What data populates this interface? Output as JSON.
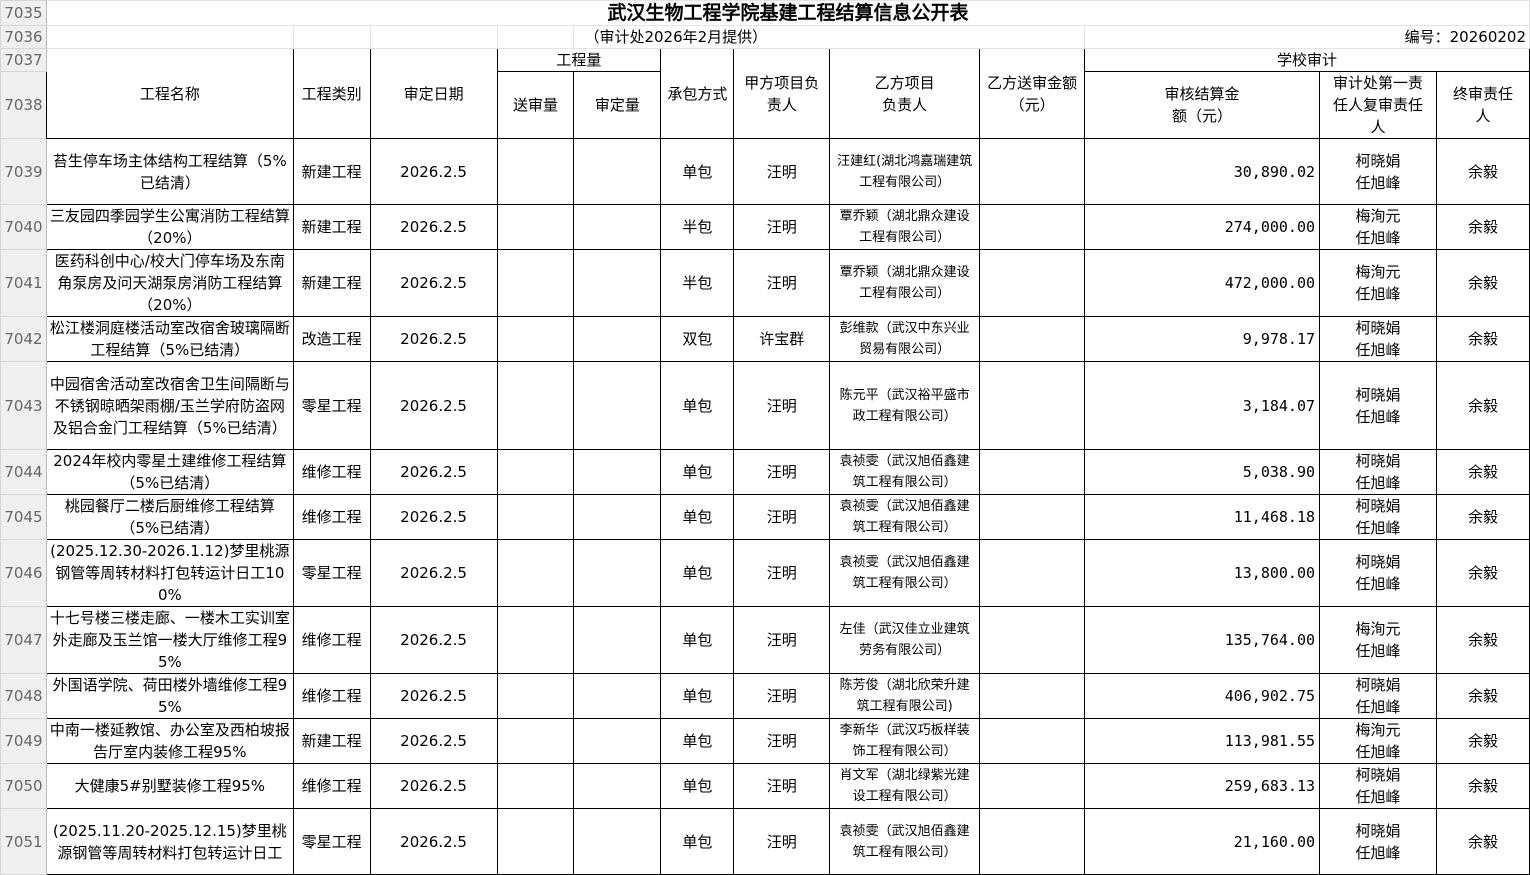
{
  "sheet": {
    "title": "武汉生物工程学院基建工程结算信息公开表",
    "subtitle": "（审计处2026年2月提供）",
    "serial": "编号：20260202",
    "header_row_numbers": [
      "7035",
      "7036",
      "7037",
      "7038"
    ],
    "headers": {
      "name": "工程名称",
      "type": "工程类别",
      "date": "审定日期",
      "quantity_group": "工程量",
      "submitted_qty": "送审量",
      "approved_qty": "审定量",
      "contract_mode": "承包方式",
      "party_a_lead": "甲方项目负责人",
      "party_b_lead": "乙方项目负责人",
      "party_b_amount": "乙方送审金额（元）",
      "school_audit_group": "学校审计",
      "audited_amount": "审核结算金额（元）",
      "audit_reviewers": "审计处第一责任人复审责任人",
      "final_reviewer": "终审责任人"
    },
    "rows": [
      {
        "row": "7039",
        "name": "苔生停车场主体结构工程结算（5%已结清）",
        "type": "新建工程",
        "date": "2026.2.5",
        "submitted_qty": "",
        "approved_qty": "",
        "mode": "单包",
        "a_lead": "汪明",
        "b_lead": "汪建红(湖北鸿嘉瑞建筑工程有限公司）",
        "b_amount": "",
        "audited": "30,890.02",
        "reviewers": "柯晓娟 任旭峰",
        "final": "余毅"
      },
      {
        "row": "7040",
        "name": "三友园四季园学生公寓消防工程结算（20%）",
        "type": "新建工程",
        "date": "2026.2.5",
        "submitted_qty": "",
        "approved_qty": "",
        "mode": "半包",
        "a_lead": "汪明",
        "b_lead": "覃乔颖（湖北鼎众建设工程有限公司）",
        "b_amount": "",
        "audited": "274,000.00",
        "reviewers": "梅洵元 任旭峰",
        "final": "余毅"
      },
      {
        "row": "7041",
        "name": "医药科创中心/校大门停车场及东南角泵房及问天湖泵房消防工程结算（20%）",
        "type": "新建工程",
        "date": "2026.2.5",
        "submitted_qty": "",
        "approved_qty": "",
        "mode": "半包",
        "a_lead": "汪明",
        "b_lead": "覃乔颖（湖北鼎众建设工程有限公司）",
        "b_amount": "",
        "audited": "472,000.00",
        "reviewers": "梅洵元 任旭峰",
        "final": "余毅"
      },
      {
        "row": "7042",
        "name": "松江楼洞庭楼活动室改宿舍玻璃隔断工程结算（5%已结清）",
        "type": "改造工程",
        "date": "2026.2.5",
        "submitted_qty": "",
        "approved_qty": "",
        "mode": "双包",
        "a_lead": "许宝群",
        "b_lead": "彭维款（武汉中东兴业贸易有限公司）",
        "b_amount": "",
        "audited": "9,978.17",
        "reviewers": "柯晓娟 任旭峰",
        "final": "余毅"
      },
      {
        "row": "7043",
        "name": "中园宿舍活动室改宿舍卫生间隔断与不锈钢晾晒架雨棚/玉兰学府防盗网及铝合金门工程结算（5%已结清）",
        "type": "零星工程",
        "date": "2026.2.5",
        "submitted_qty": "",
        "approved_qty": "",
        "mode": "单包",
        "a_lead": "汪明",
        "b_lead": "陈元平（武汉裕平盛市政工程有限公司）",
        "b_amount": "",
        "audited": "3,184.07",
        "reviewers": "柯晓娟 任旭峰",
        "final": "余毅"
      },
      {
        "row": "7044",
        "name": "2024年校内零星土建维修工程结算（5%已结清）",
        "type": "维修工程",
        "date": "2026.2.5",
        "submitted_qty": "",
        "approved_qty": "",
        "mode": "单包",
        "a_lead": "汪明",
        "b_lead": "袁祯雯（武汉旭佰鑫建筑工程有限公司）",
        "b_amount": "",
        "audited": "5,038.90",
        "reviewers": "柯晓娟 任旭峰",
        "final": "余毅"
      },
      {
        "row": "7045",
        "name": "桃园餐厅二楼后厨维修工程结算（5%已结清）",
        "type": "维修工程",
        "date": "2026.2.5",
        "submitted_qty": "",
        "approved_qty": "",
        "mode": "单包",
        "a_lead": "汪明",
        "b_lead": "袁祯雯（武汉旭佰鑫建筑工程有限公司）",
        "b_amount": "",
        "audited": "11,468.18",
        "reviewers": "柯晓娟 任旭峰",
        "final": "余毅"
      },
      {
        "row": "7046",
        "name": "(2025.12.30-2026.1.12)梦里桃源钢管等周转材料打包转运计日工100%",
        "type": "零星工程",
        "date": "2026.2.5",
        "submitted_qty": "",
        "approved_qty": "",
        "mode": "单包",
        "a_lead": "汪明",
        "b_lead": "袁祯雯（武汉旭佰鑫建筑工程有限公司）",
        "b_amount": "",
        "audited": "13,800.00",
        "reviewers": "柯晓娟 任旭峰",
        "final": "余毅"
      },
      {
        "row": "7047",
        "name": "十七号楼三楼走廊、一楼木工实训室外走廊及玉兰馆一楼大厅维修工程95%",
        "type": "维修工程",
        "date": "2026.2.5",
        "submitted_qty": "",
        "approved_qty": "",
        "mode": "单包",
        "a_lead": "汪明",
        "b_lead": "左佳（武汉佳立业建筑劳务有限公司）",
        "b_amount": "",
        "audited": "135,764.00",
        "reviewers": "梅洵元 任旭峰",
        "final": "余毅"
      },
      {
        "row": "7048",
        "name": "外国语学院、荷田楼外墙维修工程95%",
        "type": "维修工程",
        "date": "2026.2.5",
        "submitted_qty": "",
        "approved_qty": "",
        "mode": "单包",
        "a_lead": "汪明",
        "b_lead": "陈芳俊（湖北欣荣升建筑工程有限公司)",
        "b_amount": "",
        "audited": "406,902.75",
        "reviewers": "柯晓娟 任旭峰",
        "final": "余毅"
      },
      {
        "row": "7049",
        "name": "中南一楼延教馆、办公室及西柏坡报告厅室内装修工程95%",
        "type": "新建工程",
        "date": "2026.2.5",
        "submitted_qty": "",
        "approved_qty": "",
        "mode": "单包",
        "a_lead": "汪明",
        "b_lead": "李新华（武汉巧板样装饰工程有限公司）",
        "b_amount": "",
        "audited": "113,981.55",
        "reviewers": "梅洵元 任旭峰",
        "final": "余毅"
      },
      {
        "row": "7050",
        "name": "大健康5#别墅装修工程95%",
        "type": "维修工程",
        "date": "2026.2.5",
        "submitted_qty": "",
        "approved_qty": "",
        "mode": "单包",
        "a_lead": "汪明",
        "b_lead": "肖文军（湖北绿紫光建设工程有限公司）",
        "b_amount": "",
        "audited": "259,683.13",
        "reviewers": "柯晓娟 任旭峰",
        "final": "余毅"
      },
      {
        "row": "7051",
        "name": "(2025.11.20-2025.12.15)梦里桃源钢管等周转材料打包转运计日工",
        "type": "零星工程",
        "date": "2026.2.5",
        "submitted_qty": "",
        "approved_qty": "",
        "mode": "单包",
        "a_lead": "汪明",
        "b_lead": "袁祯雯（武汉旭佰鑫建筑工程有限公司）",
        "b_amount": "",
        "audited": "21,160.00",
        "reviewers": "柯晓娟 任旭峰",
        "final": "余毅"
      }
    ]
  }
}
